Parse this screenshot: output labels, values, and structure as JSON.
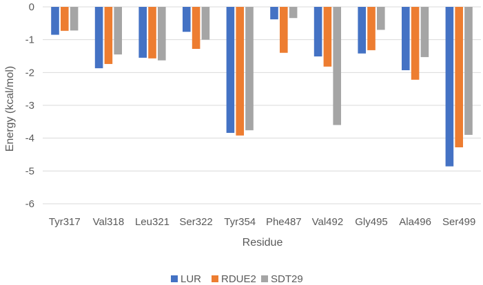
{
  "chart_data": {
    "type": "bar",
    "title": "",
    "xlabel": "Residue",
    "ylabel": "Energy (kcal/mol)",
    "ylim": [
      -6,
      0
    ],
    "yticks": [
      0,
      -1,
      -2,
      -3,
      -4,
      -5,
      -6
    ],
    "grid": true,
    "legend_position": "bottom",
    "categories": [
      "Tyr317",
      "Val318",
      "Leu321",
      "Ser322",
      "Tyr354",
      "Phe487",
      "Val492",
      "Gly495",
      "Ala496",
      "Ser499"
    ],
    "series": [
      {
        "name": "LUR",
        "color": "#4472C4",
        "values": [
          -0.85,
          -1.87,
          -1.55,
          -0.76,
          -3.84,
          -0.38,
          -1.51,
          -1.42,
          -1.93,
          -4.86
        ]
      },
      {
        "name": "RDUE2",
        "color": "#ED7D31",
        "values": [
          -0.73,
          -1.74,
          -1.57,
          -1.28,
          -3.92,
          -1.4,
          -1.82,
          -1.32,
          -2.22,
          -4.28
        ]
      },
      {
        "name": "SDT29",
        "color": "#A5A5A5",
        "values": [
          -0.72,
          -1.45,
          -1.63,
          -1.0,
          -3.76,
          -0.34,
          -3.6,
          -0.7,
          -1.53,
          -3.9
        ]
      }
    ]
  }
}
